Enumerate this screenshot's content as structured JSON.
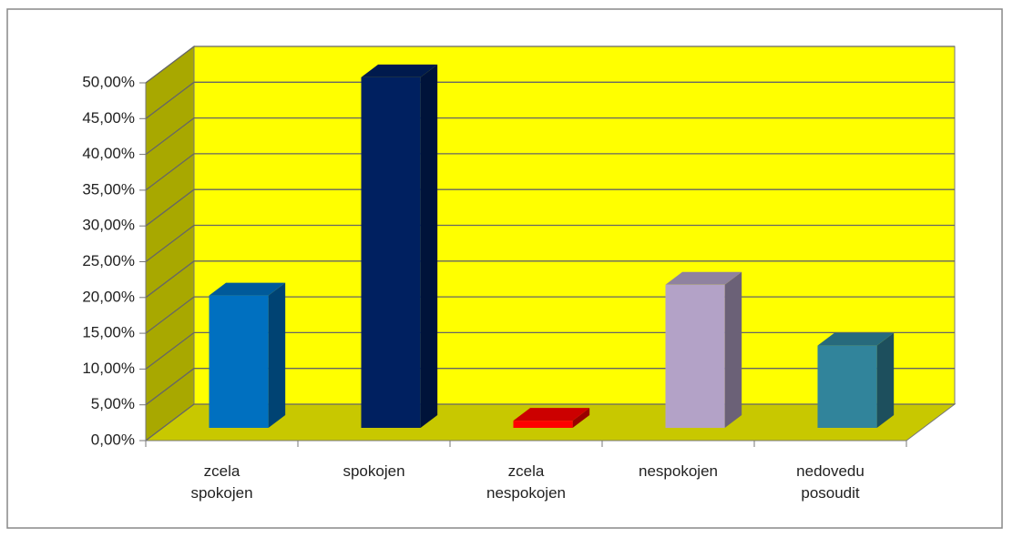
{
  "chart_data": {
    "type": "bar3d",
    "categories": [
      "zcela spokojen",
      "spokojen",
      "zcela nespokojen",
      "nespokojen",
      "nedovedu posoudit"
    ],
    "values": [
      18.5,
      49,
      1,
      20,
      11.5
    ],
    "colors": [
      "#0070c0",
      "#002060",
      "#ff0000",
      "#b3a2c7",
      "#31849b"
    ],
    "ylim": [
      0,
      50
    ],
    "yticks": [
      {
        "value": 0,
        "label": "0,00%"
      },
      {
        "value": 5,
        "label": "5,00%"
      },
      {
        "value": 10,
        "label": "10,00%"
      },
      {
        "value": 15,
        "label": "15,00%"
      },
      {
        "value": 20,
        "label": "20,00%"
      },
      {
        "value": 25,
        "label": "25,00%"
      },
      {
        "value": 30,
        "label": "30,00%"
      },
      {
        "value": 35,
        "label": "35,00%"
      },
      {
        "value": 40,
        "label": "40,00%"
      },
      {
        "value": 45,
        "label": "45,00%"
      },
      {
        "value": 50,
        "label": "50,00%"
      }
    ],
    "grid": true
  }
}
